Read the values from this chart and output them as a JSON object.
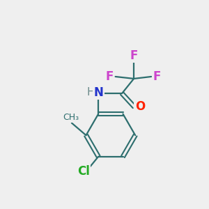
{
  "background_color": "#efefef",
  "bond_color": "#2d6e6e",
  "atom_colors": {
    "F": "#cc44cc",
    "O": "#ff2200",
    "N": "#2233cc",
    "H": "#6a8a8a",
    "Cl": "#22aa22",
    "C": "#2d6e6e",
    "methyl": "#2d6e6e"
  },
  "figsize": [
    3.0,
    3.0
  ],
  "dpi": 100
}
